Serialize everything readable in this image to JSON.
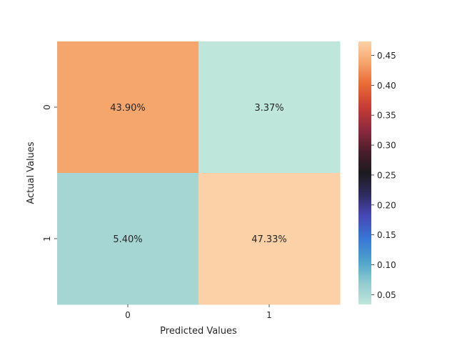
{
  "chart_data": {
    "type": "heatmap",
    "title": "",
    "xlabel": "Predicted Values",
    "ylabel": "Actual Values",
    "x_categories": [
      "0",
      "1"
    ],
    "y_categories": [
      "0",
      "1"
    ],
    "values": [
      [
        0.439,
        0.0337
      ],
      [
        0.054,
        0.4733
      ]
    ],
    "cell_labels": [
      [
        "43.90%",
        "3.37%"
      ],
      [
        "5.40%",
        "47.33%"
      ]
    ],
    "colormap": "icefire",
    "colorbar": {
      "range": [
        0.0337,
        0.4733
      ],
      "ticks": [
        0.05,
        0.1,
        0.15,
        0.2,
        0.25,
        0.3,
        0.35,
        0.4,
        0.45
      ],
      "tick_labels": [
        "0.05",
        "0.10",
        "0.15",
        "0.20",
        "0.25",
        "0.30",
        "0.35",
        "0.40",
        "0.45"
      ]
    }
  }
}
